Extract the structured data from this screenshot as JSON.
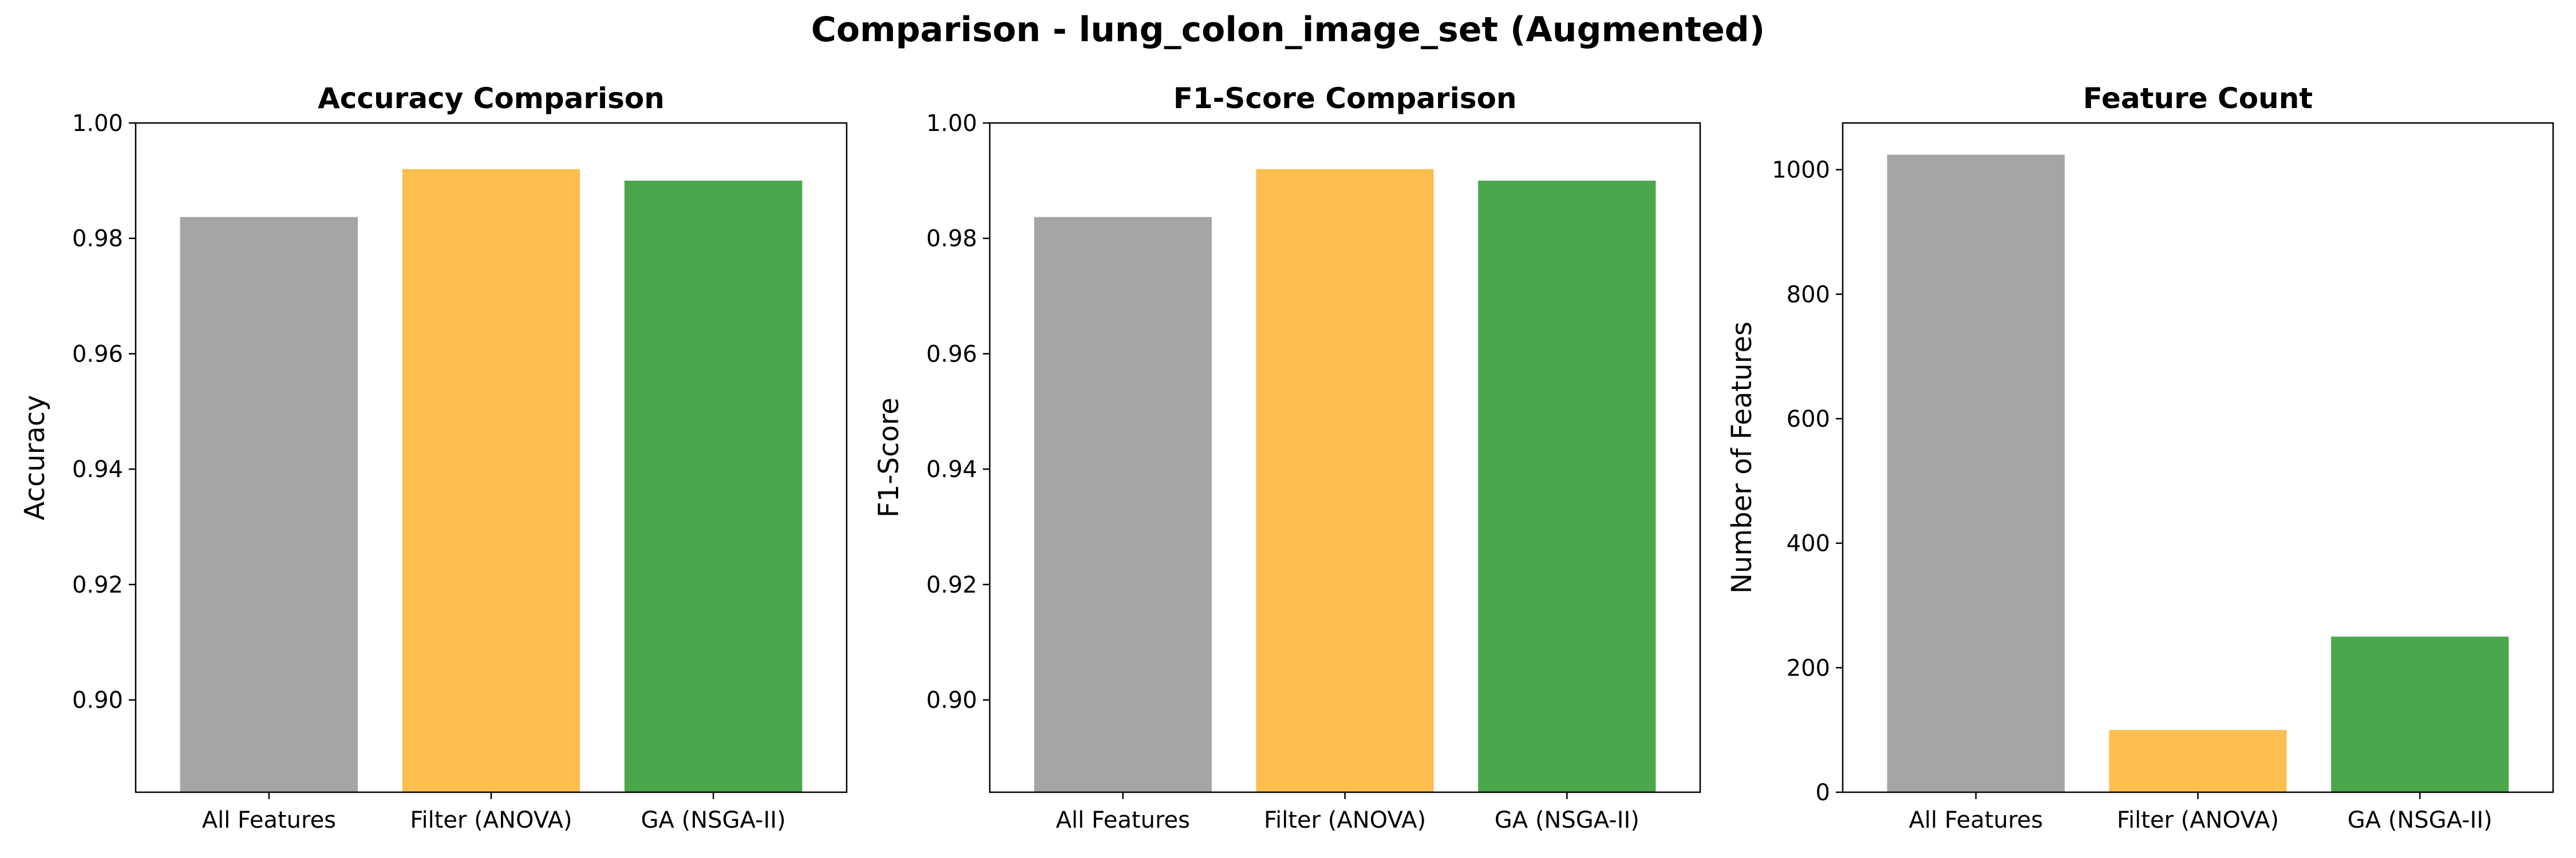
{
  "figure": {
    "suptitle": "Comparison - lung_colon_image_set (Augmented)"
  },
  "colors": {
    "All Features": "#a5a5a5",
    "Filter (ANOVA)": "#fdbe4f",
    "GA (NSGA-II)": "#4ba74b",
    "axes": "#000000",
    "text": "#000000"
  },
  "chart_data": [
    {
      "type": "bar",
      "title": "Accuracy Comparison",
      "xlabel": "",
      "ylabel": "Accuracy",
      "categories": [
        "All Features",
        "Filter (ANOVA)",
        "GA (NSGA-II)"
      ],
      "values": [
        0.9837,
        0.992,
        0.99
      ],
      "ylim": [
        0.884,
        1.0
      ],
      "yticks": [
        0.9,
        0.92,
        0.94,
        0.96,
        0.98,
        1.0
      ],
      "ytick_labels": [
        "0.90",
        "0.92",
        "0.94",
        "0.96",
        "0.98",
        "1.00"
      ],
      "grid": false,
      "legend": false
    },
    {
      "type": "bar",
      "title": "F1-Score Comparison",
      "xlabel": "",
      "ylabel": "F1-Score",
      "categories": [
        "All Features",
        "Filter (ANOVA)",
        "GA (NSGA-II)"
      ],
      "values": [
        0.9837,
        0.992,
        0.99
      ],
      "ylim": [
        0.884,
        1.0
      ],
      "yticks": [
        0.9,
        0.92,
        0.94,
        0.96,
        0.98,
        1.0
      ],
      "ytick_labels": [
        "0.90",
        "0.92",
        "0.94",
        "0.96",
        "0.98",
        "1.00"
      ],
      "grid": false,
      "legend": false
    },
    {
      "type": "bar",
      "title": "Feature Count",
      "xlabel": "",
      "ylabel": "Number of Features",
      "categories": [
        "All Features",
        "Filter (ANOVA)",
        "GA (NSGA-II)"
      ],
      "values": [
        1024,
        100,
        250
      ],
      "ylim": [
        0,
        1075
      ],
      "yticks": [
        0,
        200,
        400,
        600,
        800,
        1000
      ],
      "ytick_labels": [
        "0",
        "200",
        "400",
        "600",
        "800",
        "1000"
      ],
      "grid": false,
      "legend": false
    }
  ]
}
